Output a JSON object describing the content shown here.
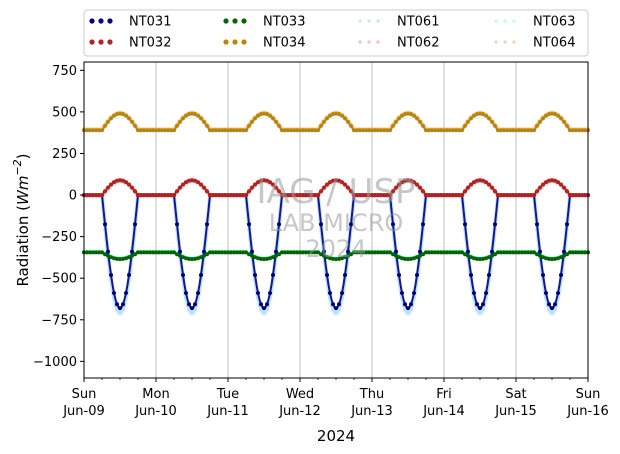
{
  "chart_data": {
    "type": "line",
    "ylabel_parts": [
      "Radiation (",
      "Wm",
      "−2",
      ")"
    ],
    "xlabel": "2024",
    "ylim": [
      -1100,
      800
    ],
    "yticks": [
      750,
      500,
      250,
      0,
      -250,
      -500,
      -750,
      -1000
    ],
    "ytick_labels": [
      "750",
      "500",
      "250",
      "0",
      "−250",
      "−500",
      "−750",
      "−1000"
    ],
    "xlim": [
      "2024-06-09",
      "2024-06-16"
    ],
    "xticks": [
      {
        "day": "Sun",
        "date": "Jun-09"
      },
      {
        "day": "Mon",
        "date": "Jun-10"
      },
      {
        "day": "Tue",
        "date": "Jun-11"
      },
      {
        "day": "Wed",
        "date": "Jun-12"
      },
      {
        "day": "Thu",
        "date": "Jun-13"
      },
      {
        "day": "Fri",
        "date": "Jun-14"
      },
      {
        "day": "Sat",
        "date": "Jun-15"
      },
      {
        "day": "Sun",
        "date": "Jun-16"
      }
    ],
    "grid": "vertical",
    "legend_position": "top",
    "series": [
      {
        "name": "NT031",
        "color": "#000080",
        "style": "dotted-large",
        "day_values": {
          "night": 0,
          "midday": -680
        }
      },
      {
        "name": "NT032",
        "color": "#b22222",
        "style": "dotted-large",
        "day_values": {
          "night": 0,
          "midday": 90
        }
      },
      {
        "name": "NT033",
        "color": "#006400",
        "style": "dotted-large",
        "day_values": {
          "night": -345,
          "midday": -385
        }
      },
      {
        "name": "NT034",
        "color": "#b8860b",
        "style": "dotted-large",
        "day_values": {
          "night": 390,
          "midday": 490
        }
      },
      {
        "name": "NT061",
        "color": "#87cefa",
        "style": "dotted-faint",
        "day_values": {
          "night": 0,
          "midday": -710
        }
      },
      {
        "name": "NT062",
        "color": "#f08080",
        "style": "dotted-faint",
        "day_values": {
          "night": 0,
          "midday": 85
        }
      },
      {
        "name": "NT063",
        "color": "#7fffd4",
        "style": "dotted-faint",
        "day_values": {
          "night": -340,
          "midday": -380
        }
      },
      {
        "name": "NT064",
        "color": "#f4a460",
        "style": "dotted-faint",
        "day_values": {
          "night": 395,
          "midday": 495
        }
      }
    ]
  },
  "watermark": {
    "line1": "IAG / USP",
    "line2": "LAB MICRO",
    "line3": "2024"
  }
}
